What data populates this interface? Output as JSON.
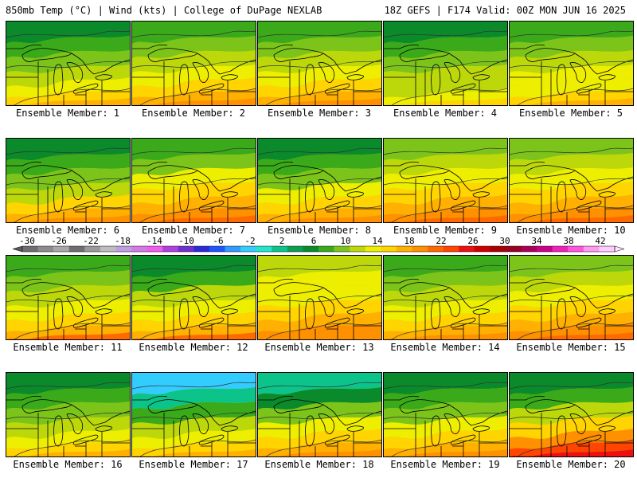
{
  "header": {
    "left": "850mb Temp (°C) | Wind (kts) | College of DuPage NEXLAB",
    "right": "18Z GEFS | F174 Valid: 00Z MON JUN 16 2025"
  },
  "colorbar": {
    "labels": [
      "-30",
      "-26",
      "-22",
      "-18",
      "-14",
      "-10",
      "-6",
      "-2",
      "2",
      "6",
      "10",
      "14",
      "18",
      "22",
      "26",
      "30",
      "34",
      "38",
      "42"
    ],
    "colors": [
      "#6e6e6e",
      "#8c8c8c",
      "#a8a8a8",
      "#6e6e6e",
      "#9a9a9a",
      "#bdbdbd",
      "#bca0e0",
      "#d47ae6",
      "#f25af0",
      "#b040e0",
      "#7030d0",
      "#2a2ad8",
      "#1f55ff",
      "#3399ff",
      "#33ccff",
      "#22e6cc",
      "#0cc48a",
      "#0aa050",
      "#0a8a2a",
      "#3aaa1a",
      "#7cc41a",
      "#bcd80a",
      "#eeee00",
      "#ffd400",
      "#ffb000",
      "#ff9000",
      "#ff6a00",
      "#ff4500",
      "#ee1010",
      "#cc0000",
      "#aa0000",
      "#990022",
      "#aa0055",
      "#cc0088",
      "#ee22bb",
      "#ff55dd",
      "#ff99ee",
      "#ffccff"
    ]
  },
  "members": [
    {
      "label": "Ensemble Member: 1",
      "colors": [
        "#0a8a2a",
        "#3aaa1a",
        "#7cc41a",
        "#bcd80a",
        "#eeee00",
        "#ffd400",
        "#ffb000"
      ]
    },
    {
      "label": "Ensemble Member: 2",
      "colors": [
        "#3aaa1a",
        "#7cc41a",
        "#bcd80a",
        "#eeee00",
        "#ffd400",
        "#ffb000",
        "#ff9000"
      ]
    },
    {
      "label": "Ensemble Member: 3",
      "colors": [
        "#3aaa1a",
        "#7cc41a",
        "#bcd80a",
        "#eeee00",
        "#ffd400",
        "#ffb000",
        "#ff9000"
      ]
    },
    {
      "label": "Ensemble Member: 4",
      "colors": [
        "#0a8a2a",
        "#3aaa1a",
        "#7cc41a",
        "#bcd80a",
        "#bcd80a",
        "#eeee00",
        "#ffd400"
      ]
    },
    {
      "label": "Ensemble Member: 5",
      "colors": [
        "#3aaa1a",
        "#7cc41a",
        "#bcd80a",
        "#eeee00",
        "#eeee00",
        "#ffd400",
        "#ffb000"
      ]
    },
    {
      "label": "Ensemble Member: 6",
      "colors": [
        "#0a8a2a",
        "#3aaa1a",
        "#7cc41a",
        "#bcd80a",
        "#ffd400",
        "#ffb000",
        "#ff9000"
      ]
    },
    {
      "label": "Ensemble Member: 7",
      "colors": [
        "#3aaa1a",
        "#7cc41a",
        "#eeee00",
        "#ffd400",
        "#ffb000",
        "#ff9000",
        "#ff6a00"
      ]
    },
    {
      "label": "Ensemble Member: 8",
      "colors": [
        "#0a8a2a",
        "#3aaa1a",
        "#7cc41a",
        "#eeee00",
        "#ffd400",
        "#ffb000",
        "#ff9000"
      ]
    },
    {
      "label": "Ensemble Member: 9",
      "colors": [
        "#7cc41a",
        "#bcd80a",
        "#eeee00",
        "#ffd400",
        "#ffb000",
        "#ff9000",
        "#ff6a00"
      ]
    },
    {
      "label": "Ensemble Member: 10",
      "colors": [
        "#7cc41a",
        "#bcd80a",
        "#eeee00",
        "#ffd400",
        "#ffb000",
        "#ff9000",
        "#ff6a00"
      ]
    },
    {
      "label": "Ensemble Member: 11",
      "colors": [
        "#3aaa1a",
        "#7cc41a",
        "#bcd80a",
        "#eeee00",
        "#ffd400",
        "#ffb000",
        "#ff6a00"
      ]
    },
    {
      "label": "Ensemble Member: 12",
      "colors": [
        "#0a8a2a",
        "#3aaa1a",
        "#bcd80a",
        "#eeee00",
        "#ffd400",
        "#ffb000",
        "#ff6a00"
      ]
    },
    {
      "label": "Ensemble Member: 13",
      "colors": [
        "#bcd80a",
        "#eeee00",
        "#eeee00",
        "#ffd400",
        "#ffb000",
        "#ff9000",
        "#ff9000"
      ]
    },
    {
      "label": "Ensemble Member: 14",
      "colors": [
        "#3aaa1a",
        "#7cc41a",
        "#bcd80a",
        "#eeee00",
        "#ffd400",
        "#ffb000",
        "#ff9000"
      ]
    },
    {
      "label": "Ensemble Member: 15",
      "colors": [
        "#7cc41a",
        "#bcd80a",
        "#eeee00",
        "#ffd400",
        "#ffb000",
        "#ff9000",
        "#ff6a00"
      ]
    },
    {
      "label": "Ensemble Member: 16",
      "colors": [
        "#0a8a2a",
        "#3aaa1a",
        "#7cc41a",
        "#bcd80a",
        "#eeee00",
        "#ffd400",
        "#ffb000"
      ]
    },
    {
      "label": "Ensemble Member: 17",
      "colors": [
        "#33ccff",
        "#0cc48a",
        "#3aaa1a",
        "#bcd80a",
        "#eeee00",
        "#ffd400",
        "#ffb000"
      ]
    },
    {
      "label": "Ensemble Member: 18",
      "colors": [
        "#0cc48a",
        "#0a8a2a",
        "#7cc41a",
        "#eeee00",
        "#ffd400",
        "#ffb000",
        "#ff9000"
      ]
    },
    {
      "label": "Ensemble Member: 19",
      "colors": [
        "#0a8a2a",
        "#3aaa1a",
        "#7cc41a",
        "#eeee00",
        "#ffd400",
        "#ffb000",
        "#ff9000"
      ]
    },
    {
      "label": "Ensemble Member: 20",
      "colors": [
        "#0a8a2a",
        "#3aaa1a",
        "#bcd80a",
        "#ffd400",
        "#ff9000",
        "#ff4500",
        "#ee1010"
      ]
    }
  ]
}
